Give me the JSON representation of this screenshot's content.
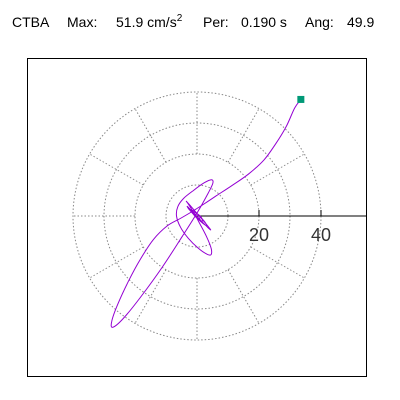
{
  "header": {
    "station": "CTBA",
    "max_label": "Max:",
    "max_value": "51.9",
    "max_unit_base": "cm/s",
    "max_unit_exp": "2",
    "per_label": "Per:",
    "per_value": "0.190 s",
    "ang_label": "Ang:",
    "ang_value": "49.9"
  },
  "chart_data": {
    "type": "polar-orbit",
    "title": "",
    "xlabel": "",
    "ylabel": "",
    "radial_ticks": [
      20,
      40
    ],
    "radial_tick_labels": [
      "20",
      "40"
    ],
    "xlim": [
      -40,
      52
    ],
    "ylim": [
      -52,
      50
    ],
    "rings": [
      10,
      20,
      30,
      40
    ],
    "grid": true,
    "angular_gridlines_deg": [
      0,
      30,
      60,
      90,
      120,
      150,
      180,
      210,
      240,
      270,
      300,
      330
    ],
    "trace_color": "#9400d3",
    "marker_color": "#009977",
    "series": [
      {
        "values": [
          [
            33.5,
            37.6
          ],
          [
            31.5,
            34.8
          ],
          [
            28.8,
            28.9
          ],
          [
            25.4,
            23.3
          ],
          [
            21.6,
            18.1
          ],
          [
            16.7,
            13.6
          ],
          [
            11.4,
            9.9
          ],
          [
            6.2,
            6.5
          ],
          [
            2.0,
            3.7
          ],
          [
            -1.8,
            1.3
          ],
          [
            -5.4,
            -0.8
          ],
          [
            -9.6,
            -3.2
          ],
          [
            -14.0,
            -7.5
          ],
          [
            -18.3,
            -14.0
          ],
          [
            -22.2,
            -21.2
          ],
          [
            -25.5,
            -28.3
          ],
          [
            -27.5,
            -33.9
          ],
          [
            -27.2,
            -35.9
          ],
          [
            -23.9,
            -33.2
          ],
          [
            -18.3,
            -26.3
          ],
          [
            -11.2,
            -16.5
          ],
          [
            -4.7,
            -6.5
          ],
          [
            0.4,
            1.6
          ],
          [
            3.6,
            7.4
          ],
          [
            5.1,
            10.5
          ],
          [
            4.7,
            11.7
          ],
          [
            2.3,
            10.7
          ],
          [
            -1.2,
            8.2
          ],
          [
            -4.4,
            5.6
          ],
          [
            -6.2,
            3.0
          ],
          [
            -6.6,
            0.0
          ],
          [
            -5.4,
            -3.5
          ],
          [
            -2.8,
            -7.2
          ],
          [
            0.3,
            -10.3
          ],
          [
            3.0,
            -12.2
          ],
          [
            4.5,
            -12.5
          ],
          [
            4.6,
            -10.6
          ],
          [
            3.2,
            -6.9
          ],
          [
            0.8,
            -2.3
          ],
          [
            -1.5,
            1.8
          ],
          [
            -3.1,
            4.3
          ],
          [
            -3.4,
            4.7
          ],
          [
            -2.2,
            3.4
          ],
          [
            0.0,
            0.8
          ],
          [
            2.4,
            -1.9
          ],
          [
            4.0,
            -3.9
          ],
          [
            4.4,
            -4.5
          ],
          [
            3.4,
            -3.6
          ],
          [
            1.4,
            -1.6
          ],
          [
            -0.8,
            0.7
          ],
          [
            -2.5,
            2.5
          ],
          [
            -3.2,
            3.1
          ],
          [
            -2.6,
            2.2
          ],
          [
            -0.9,
            0.3
          ],
          [
            1.1,
            -1.7
          ],
          [
            2.6,
            -2.9
          ],
          [
            3.1,
            -3.0
          ],
          [
            2.5,
            -1.9
          ],
          [
            1.0,
            -0.2
          ],
          [
            -0.6,
            1.3
          ],
          [
            -1.8,
            2.0
          ],
          [
            -2.1,
            1.8
          ],
          [
            -1.4,
            0.8
          ],
          [
            -0.2,
            -0.5
          ],
          [
            1.0,
            -1.4
          ],
          [
            1.7,
            -1.6
          ],
          [
            1.7,
            -1.0
          ],
          [
            1.0,
            0.0
          ],
          [
            0.0,
            0.8
          ],
          [
            -0.8,
            1.1
          ],
          [
            -1.1,
            0.8
          ],
          [
            -0.8,
            0.1
          ],
          [
            -0.1,
            -0.6
          ],
          [
            0.6,
            -0.9
          ],
          [
            0.9,
            -0.6
          ],
          [
            0.8,
            0.0
          ],
          [
            0.3,
            0.5
          ],
          [
            -0.3,
            0.6
          ],
          [
            -0.6,
            0.3
          ],
          [
            -0.4,
            -0.2
          ],
          [
            0.0,
            -0.4
          ]
        ]
      }
    ]
  }
}
